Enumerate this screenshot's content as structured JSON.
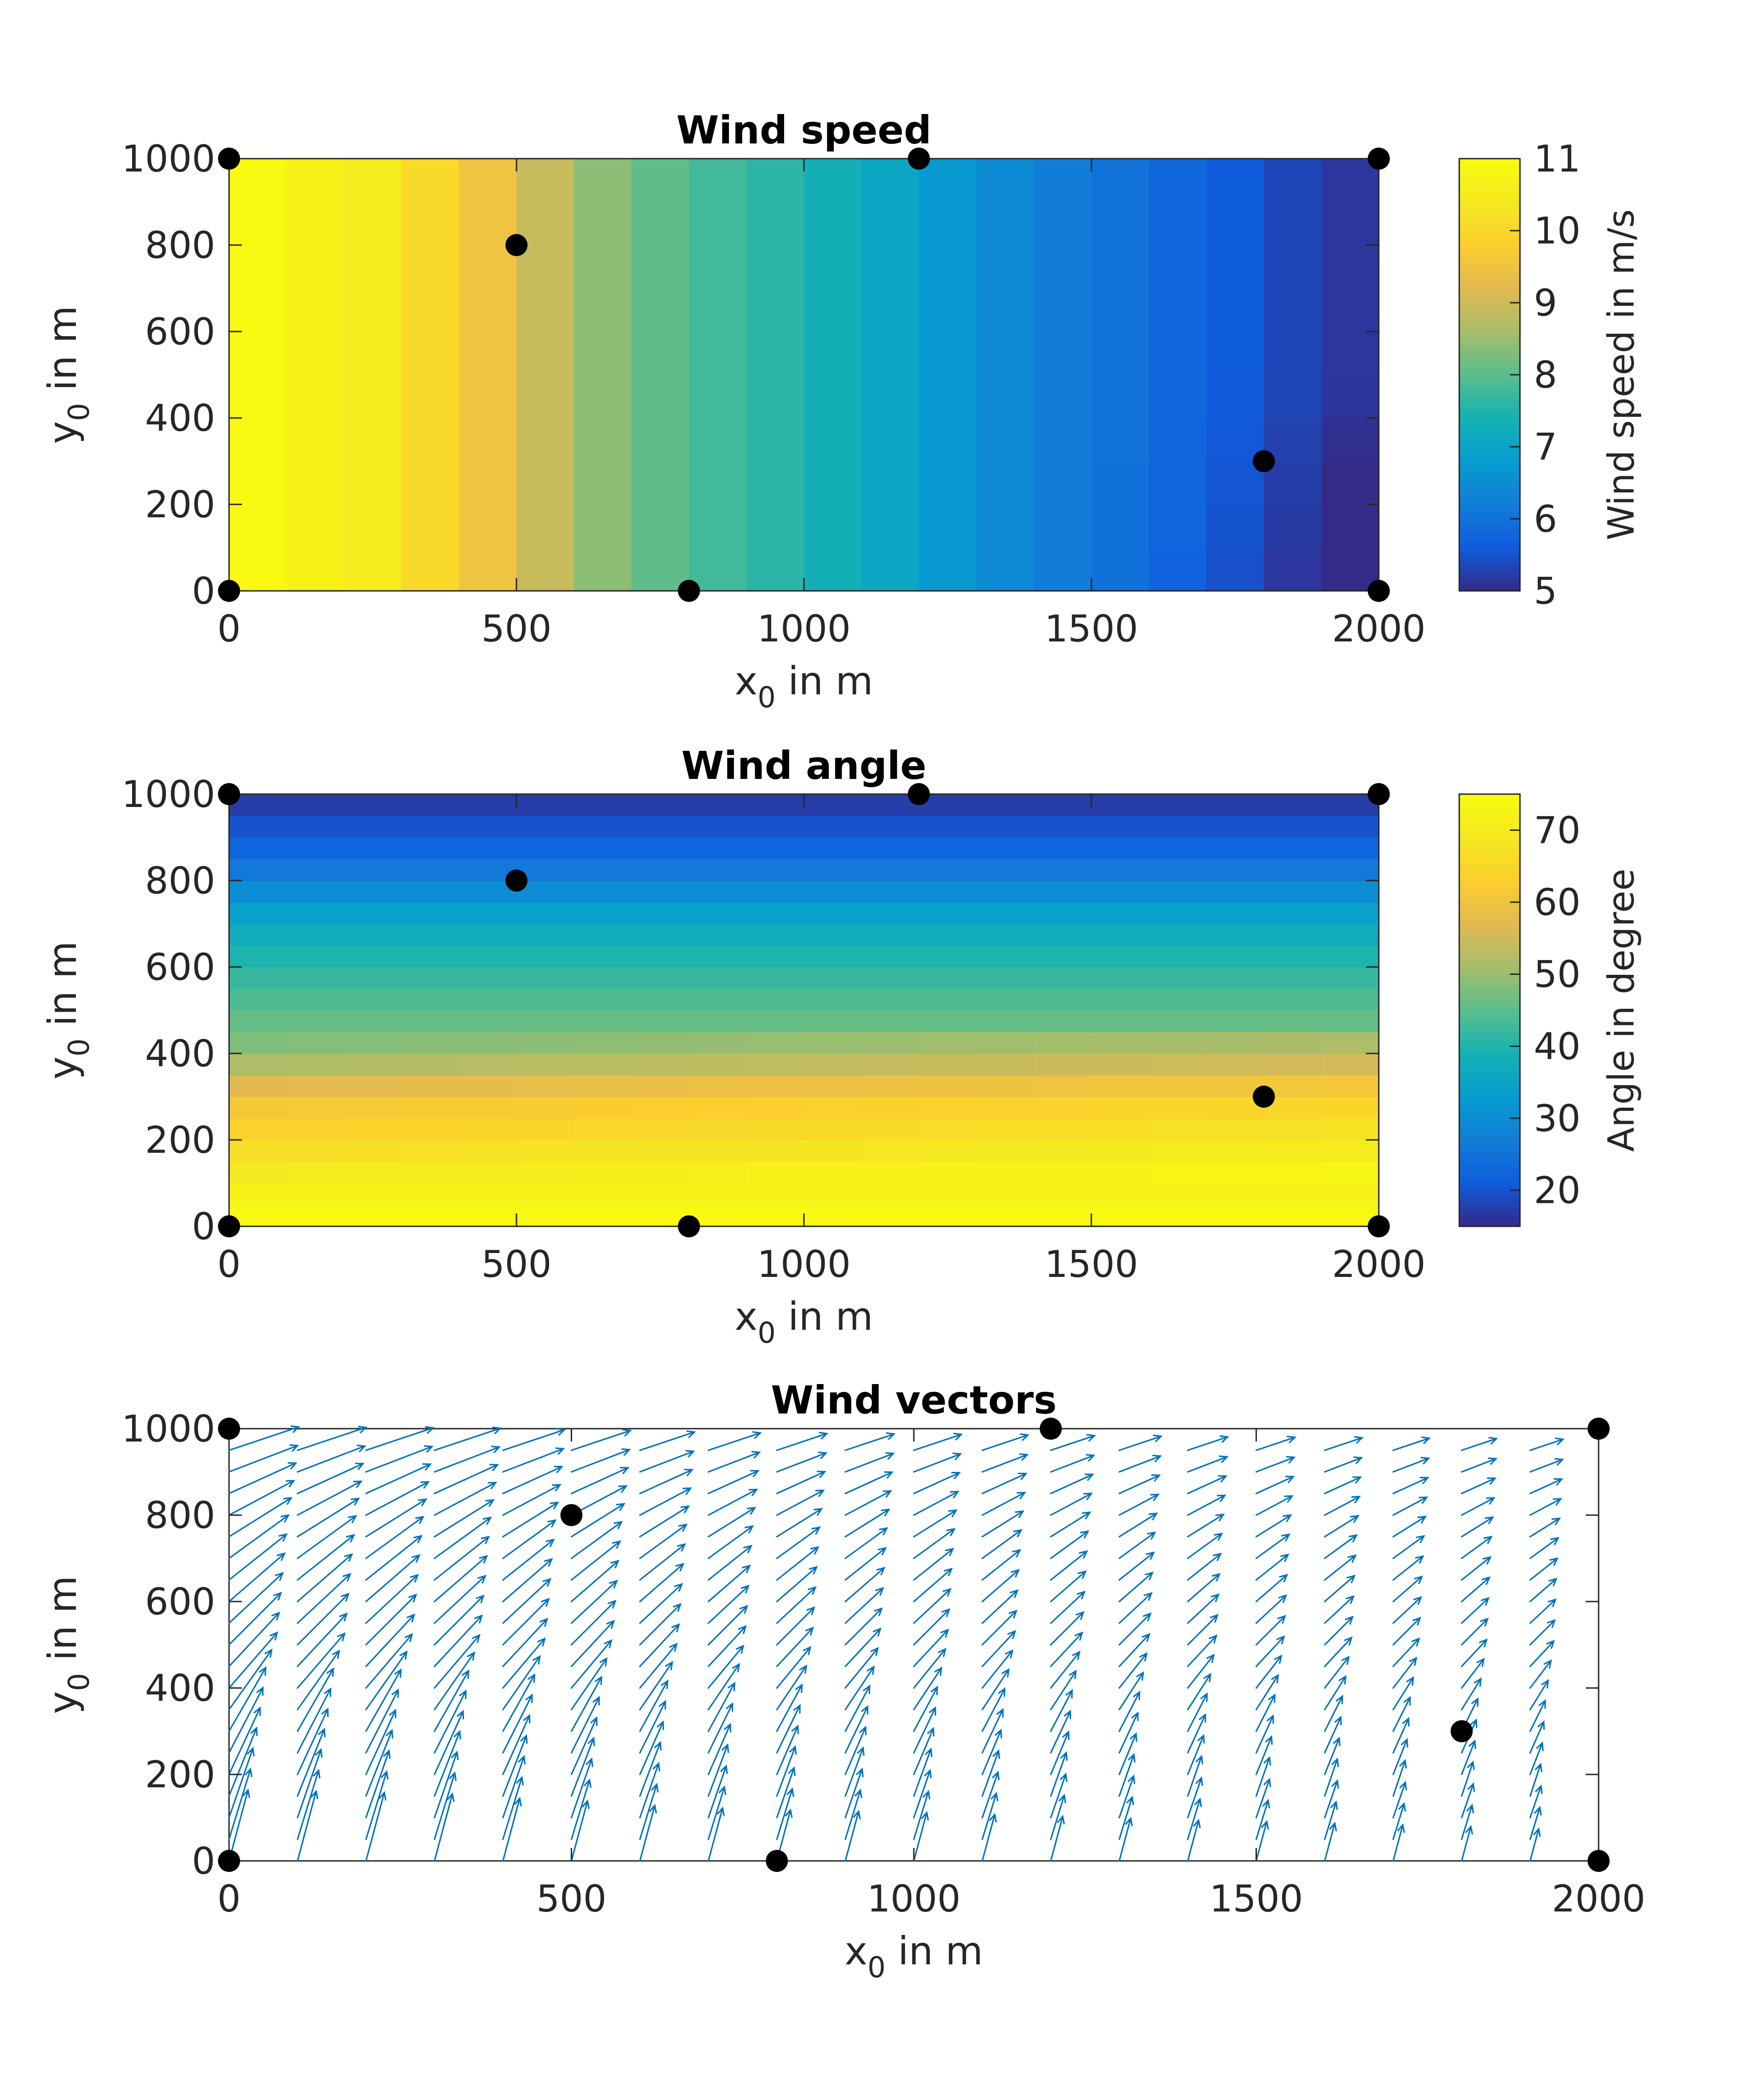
{
  "chart_data": [
    {
      "type": "heatmap",
      "title": "Wind speed",
      "xlabel": {
        "base": "x",
        "sub": "0",
        "rest": " in m"
      },
      "ylabel": {
        "base": "y",
        "sub": "0",
        "rest": " in m"
      },
      "xlim": [
        0,
        2000
      ],
      "ylim": [
        0,
        1000
      ],
      "xticks": [
        0,
        500,
        1000,
        1500,
        2000
      ],
      "yticks": [
        0,
        200,
        400,
        600,
        800,
        1000
      ],
      "grid": {
        "nx": 20,
        "ny": 10,
        "cell_x": 100,
        "cell_y": 100
      },
      "value_model": {
        "column_speed_x": [
          0,
          100,
          200,
          300,
          400,
          500,
          600,
          700,
          800,
          900,
          1000,
          1100,
          1200,
          1300,
          1400,
          1500,
          1600,
          1700,
          1800,
          1900,
          2000
        ],
        "column_speed_v": [
          11.0,
          10.8,
          10.6,
          10.4,
          9.7,
          9.3,
          8.6,
          8.2,
          7.9,
          7.7,
          7.5,
          7.2,
          6.9,
          6.6,
          6.3,
          6.1,
          5.9,
          5.7,
          5.5,
          5.2,
          5.1
        ],
        "lower_right_dip": 0.3
      },
      "colorbar": {
        "label": "Wind speed in m/s",
        "min": 5,
        "max": 11,
        "ticks": [
          5,
          6,
          7,
          8,
          9,
          10,
          11
        ]
      },
      "points": [
        [
          0,
          1000
        ],
        [
          1200,
          1000
        ],
        [
          2000,
          1000
        ],
        [
          500,
          800
        ],
        [
          1800,
          300
        ],
        [
          0,
          0
        ],
        [
          800,
          0
        ],
        [
          2000,
          0
        ]
      ]
    },
    {
      "type": "heatmap",
      "title": "Wind angle",
      "xlabel": {
        "base": "x",
        "sub": "0",
        "rest": " in m"
      },
      "ylabel": {
        "base": "y",
        "sub": "0",
        "rest": " in m"
      },
      "xlim": [
        0,
        2000
      ],
      "ylim": [
        0,
        1000
      ],
      "xticks": [
        0,
        500,
        1000,
        1500,
        2000
      ],
      "yticks": [
        0,
        200,
        400,
        600,
        800,
        1000
      ],
      "grid": {
        "nx": 20,
        "ny": 20,
        "cell_x": 100,
        "cell_y": 50
      },
      "value_model": {
        "row_angle_y": [
          0,
          100,
          200,
          300,
          400,
          500,
          600,
          700,
          800,
          900,
          1000
        ],
        "row_angle_v": [
          75,
          71,
          65,
          60,
          49,
          45,
          41,
          36,
          28,
          21,
          16
        ],
        "right_side_boost": 4
      },
      "colorbar": {
        "label": "Angle in degree",
        "min": 15,
        "max": 75,
        "ticks": [
          20,
          30,
          40,
          50,
          60,
          70
        ]
      },
      "points": [
        [
          0,
          1000
        ],
        [
          1200,
          1000
        ],
        [
          2000,
          1000
        ],
        [
          500,
          800
        ],
        [
          1800,
          300
        ],
        [
          0,
          0
        ],
        [
          800,
          0
        ],
        [
          2000,
          0
        ]
      ]
    },
    {
      "type": "quiver",
      "title": "Wind vectors",
      "xlabel": {
        "base": "x",
        "sub": "0",
        "rest": " in m"
      },
      "ylabel": {
        "base": "y",
        "sub": "0",
        "rest": " in m"
      },
      "xlim": [
        0,
        2000
      ],
      "ylim": [
        0,
        1000
      ],
      "xticks": [
        0,
        500,
        1000,
        1500,
        2000
      ],
      "yticks": [
        0,
        200,
        400,
        600,
        800,
        1000
      ],
      "arrow_grid": {
        "x_step": 100,
        "x_max": 1900,
        "y_step": 50,
        "y_max": 950
      },
      "arrow_color": "#0072BD",
      "points": [
        [
          0,
          1000
        ],
        [
          1200,
          1000
        ],
        [
          2000,
          1000
        ],
        [
          500,
          800
        ],
        [
          1800,
          300
        ],
        [
          0,
          0
        ],
        [
          800,
          0
        ],
        [
          2000,
          0
        ]
      ]
    }
  ]
}
